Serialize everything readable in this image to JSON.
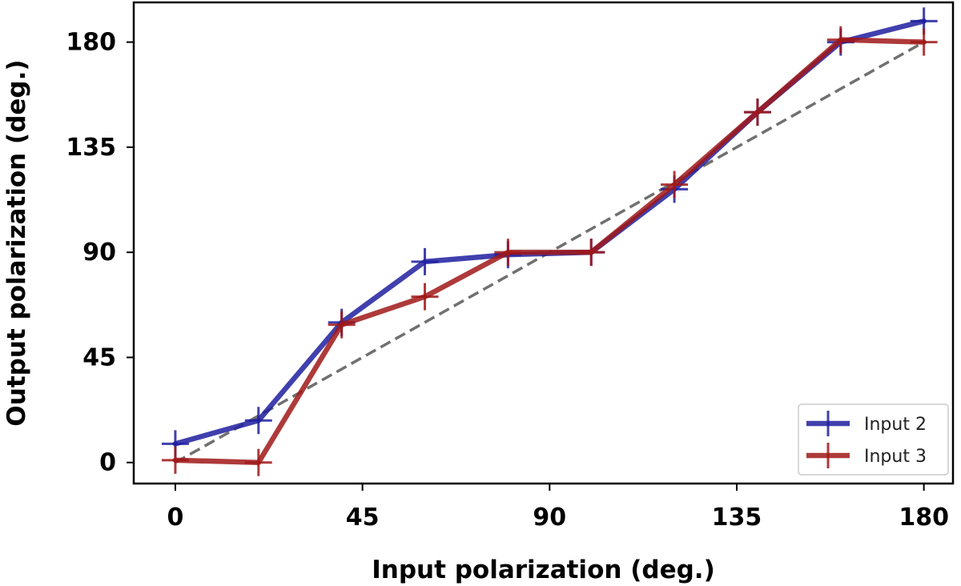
{
  "chart_data": {
    "type": "line",
    "title": "",
    "xlabel": "Input polarization (deg.)",
    "ylabel": "Output polarization (deg.)",
    "xlim": [
      -10,
      187
    ],
    "ylim": [
      -9,
      197
    ],
    "xticks": [
      0,
      45,
      90,
      135,
      180
    ],
    "yticks": [
      0,
      45,
      90,
      135,
      180
    ],
    "xtick_labels": [
      "0",
      "45",
      "90",
      "135",
      "180"
    ],
    "ytick_labels": [
      "0",
      "45",
      "90",
      "135",
      "180"
    ],
    "grid": false,
    "legend_position": "bottom-right",
    "reference_line": {
      "style": "dashed",
      "color": "#707070",
      "from": [
        0,
        0
      ],
      "to": [
        180,
        180
      ]
    },
    "series": [
      {
        "name": "Input 2",
        "color": "#1f1fa0",
        "x": [
          0,
          20,
          40,
          60,
          80,
          100,
          120,
          140,
          160,
          180
        ],
        "y": [
          8,
          18,
          60,
          86,
          89,
          90,
          117,
          150,
          180,
          189
        ]
      },
      {
        "name": "Input 3",
        "color": "#a01818",
        "x": [
          0,
          20,
          40,
          60,
          80,
          100,
          120,
          140,
          160,
          180
        ],
        "y": [
          1,
          0,
          59,
          71,
          90,
          90,
          119,
          150,
          181,
          180
        ]
      }
    ]
  }
}
